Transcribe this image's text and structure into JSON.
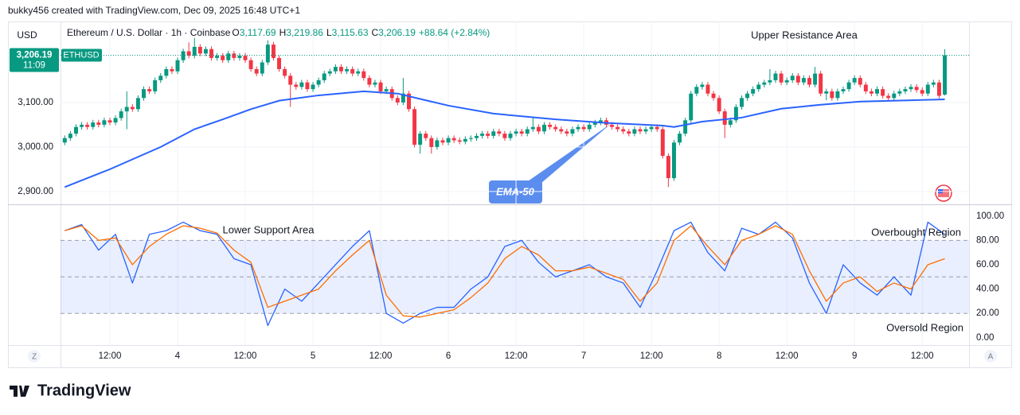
{
  "header": {
    "credit": "bukky456 created with TradingView.com, Dec 09, 2025 16:48 UTC+1"
  },
  "footer": {
    "brand": "TradingView"
  },
  "controls": [
    "Z",
    "A"
  ],
  "chart_data": [
    {
      "type": "candlestick",
      "title": "Ethereum / U.S. Dollar · 1h · Coinbase",
      "ohlc_legend": [
        [
          "O",
          "3,117.69"
        ],
        [
          "H",
          "3,219.86"
        ],
        [
          "L",
          "3,115.63"
        ],
        [
          "C",
          "3,206.19"
        ]
      ],
      "change": "+88.64 (+2.84%)",
      "unit": "USD",
      "price_tag": {
        "value": 3206.19,
        "label": "3,206.19",
        "countdown": "11:09",
        "symbol": "ETHUSD"
      },
      "annotations": [
        "Upper Resistance Area"
      ],
      "up_color": "#089981",
      "down_color": "#f23645",
      "xlim": [
        -20.75,
        140.3
      ],
      "ylim": [
        2873,
        3282
      ],
      "yticks": [
        {
          "value": 2900,
          "label": "2,900.00"
        },
        {
          "value": 3000,
          "label": "3,000.00"
        },
        {
          "value": 3100,
          "label": "3,100.00"
        }
      ],
      "grid": true,
      "x": [
        -20,
        -19,
        -18,
        -17,
        -16,
        -15,
        -14,
        -13,
        -12,
        -11,
        -10,
        -9,
        -8,
        -7,
        -6,
        -5,
        -4,
        -3,
        -2,
        -1,
        0,
        1,
        2,
        3,
        4,
        5,
        6,
        7,
        8,
        9,
        10,
        11,
        12,
        13,
        14,
        15,
        16,
        17,
        18,
        19,
        20,
        21,
        22,
        23,
        24,
        25,
        26,
        27,
        28,
        29,
        30,
        31,
        32,
        33,
        34,
        35,
        36,
        37,
        38,
        39,
        40,
        41,
        42,
        43,
        44,
        45,
        46,
        47,
        48,
        49,
        50,
        51,
        52,
        53,
        54,
        55,
        56,
        57,
        58,
        59,
        60,
        61,
        62,
        63,
        64,
        65,
        66,
        67,
        68,
        69,
        70,
        71,
        72,
        73,
        74,
        75,
        76,
        77,
        78,
        79,
        80,
        81,
        82,
        83,
        84,
        85,
        86,
        87,
        88,
        89,
        90,
        91,
        92,
        93,
        94,
        95,
        96,
        97,
        98,
        99,
        100,
        101,
        102,
        103,
        104,
        105,
        106,
        107,
        108,
        109,
        110,
        111,
        112,
        113,
        114,
        115,
        116,
        117,
        118,
        119,
        120,
        121,
        122,
        123,
        124,
        125,
        126,
        127,
        128,
        129,
        130,
        131,
        132,
        133,
        134,
        135,
        136
      ],
      "open": [
        3010,
        3020,
        3030,
        3045,
        3050,
        3045,
        3055,
        3050,
        3060,
        3055,
        3065,
        3080,
        3090,
        3085,
        3110,
        3130,
        3125,
        3150,
        3160,
        3175,
        3170,
        3195,
        3215,
        3205,
        3225,
        3210,
        3220,
        3200,
        3205,
        3195,
        3210,
        3200,
        3205,
        3195,
        3175,
        3165,
        3190,
        3230,
        3200,
        3175,
        3160,
        3140,
        3135,
        3145,
        3130,
        3140,
        3150,
        3165,
        3170,
        3180,
        3170,
        3175,
        3165,
        3170,
        3155,
        3140,
        3145,
        3125,
        3130,
        3110,
        3100,
        3120,
        3085,
        3005,
        3030,
        3020,
        3000,
        3015,
        3010,
        3020,
        3015,
        3012,
        3018,
        3020,
        3025,
        3030,
        3025,
        3035,
        3030,
        3020,
        3030,
        3035,
        3030,
        3040,
        3045,
        3035,
        3050,
        3045,
        3040,
        3035,
        3030,
        3040,
        3045,
        3040,
        3050,
        3055,
        3060,
        3050,
        3045,
        3040,
        3035,
        3030,
        3040,
        3035,
        3040,
        3045,
        3040,
        2980,
        2930,
        3010,
        3030,
        3060,
        3120,
        3135,
        3140,
        3120,
        3110,
        3080,
        3050,
        3060,
        3090,
        3110,
        3120,
        3130,
        3140,
        3145,
        3150,
        3165,
        3145,
        3150,
        3160,
        3145,
        3155,
        3140,
        3165,
        3120,
        3125,
        3110,
        3125,
        3130,
        3145,
        3155,
        3140,
        3125,
        3120,
        3130,
        3115,
        3110,
        3120,
        3125,
        3130,
        3135,
        3128,
        3120,
        3140,
        3145,
        3117.69
      ],
      "high": [
        3026,
        3036,
        3051,
        3056,
        3056,
        3061,
        3061,
        3066,
        3066,
        3071,
        3086,
        3125,
        3096,
        3116,
        3136,
        3136,
        3156,
        3166,
        3181,
        3181,
        3201,
        3221,
        3235,
        3245,
        3231,
        3226,
        3226,
        3211,
        3211,
        3216,
        3216,
        3211,
        3211,
        3201,
        3181,
        3196,
        3240,
        3236,
        3206,
        3181,
        3166,
        3146,
        3151,
        3151,
        3146,
        3156,
        3171,
        3176,
        3186,
        3186,
        3181,
        3181,
        3176,
        3176,
        3161,
        3151,
        3151,
        3136,
        3136,
        3116,
        3155,
        3126,
        3091,
        3036,
        3036,
        3026,
        3021,
        3021,
        3026,
        3026,
        3021,
        3024,
        3026,
        3031,
        3036,
        3036,
        3041,
        3041,
        3036,
        3036,
        3041,
        3041,
        3046,
        3066,
        3051,
        3056,
        3056,
        3051,
        3046,
        3041,
        3046,
        3051,
        3051,
        3056,
        3061,
        3066,
        3066,
        3056,
        3051,
        3046,
        3041,
        3046,
        3046,
        3046,
        3051,
        3051,
        3046,
        2986,
        3016,
        3036,
        3066,
        3126,
        3141,
        3146,
        3146,
        3126,
        3116,
        3086,
        3066,
        3096,
        3116,
        3126,
        3136,
        3146,
        3151,
        3175,
        3171,
        3171,
        3156,
        3166,
        3166,
        3161,
        3161,
        3180,
        3171,
        3131,
        3131,
        3131,
        3136,
        3151,
        3161,
        3161,
        3146,
        3131,
        3136,
        3136,
        3121,
        3126,
        3131,
        3136,
        3141,
        3141,
        3134,
        3146,
        3151,
        3151,
        3219.86
      ],
      "low": [
        3004,
        3014,
        3024,
        3039,
        3039,
        3039,
        3044,
        3044,
        3049,
        3049,
        3059,
        3040,
        3079,
        3079,
        3104,
        3119,
        3119,
        3144,
        3154,
        3164,
        3164,
        3189,
        3199,
        3199,
        3204,
        3204,
        3194,
        3194,
        3189,
        3189,
        3194,
        3194,
        3189,
        3169,
        3159,
        3159,
        3184,
        3194,
        3169,
        3154,
        3090,
        3129,
        3129,
        3124,
        3124,
        3134,
        3144,
        3159,
        3164,
        3164,
        3164,
        3159,
        3159,
        3149,
        3134,
        3134,
        3119,
        3119,
        3104,
        3094,
        3094,
        3079,
        2999,
        2985,
        3014,
        2985,
        2994,
        3004,
        3004,
        3009,
        3006,
        3006,
        3012,
        3014,
        3019,
        3019,
        3019,
        3024,
        3014,
        3014,
        3024,
        3024,
        3024,
        3034,
        3029,
        3029,
        3039,
        3034,
        3029,
        3024,
        3024,
        3034,
        3034,
        3034,
        3044,
        3049,
        3044,
        3039,
        3034,
        3029,
        3024,
        3024,
        3029,
        3029,
        3034,
        3034,
        2974,
        2910,
        2924,
        3004,
        3024,
        3054,
        3114,
        3129,
        3114,
        3104,
        3074,
        3020,
        3044,
        3054,
        3084,
        3104,
        3114,
        3124,
        3134,
        3139,
        3144,
        3139,
        3139,
        3144,
        3139,
        3139,
        3134,
        3134,
        3114,
        3105,
        3104,
        3104,
        3119,
        3124,
        3139,
        3134,
        3119,
        3114,
        3114,
        3109,
        3104,
        3104,
        3114,
        3119,
        3124,
        3122,
        3114,
        3114,
        3134,
        3109,
        3115.63
      ],
      "close": [
        3020,
        3030,
        3045,
        3050,
        3045,
        3055,
        3050,
        3060,
        3055,
        3065,
        3080,
        3090,
        3085,
        3110,
        3130,
        3125,
        3150,
        3160,
        3175,
        3170,
        3195,
        3215,
        3205,
        3225,
        3210,
        3220,
        3200,
        3205,
        3195,
        3210,
        3200,
        3205,
        3195,
        3175,
        3165,
        3190,
        3230,
        3200,
        3175,
        3160,
        3140,
        3135,
        3145,
        3130,
        3140,
        3150,
        3165,
        3170,
        3180,
        3170,
        3175,
        3165,
        3170,
        3155,
        3140,
        3145,
        3125,
        3130,
        3110,
        3100,
        3120,
        3085,
        3005,
        3030,
        3020,
        3000,
        3015,
        3010,
        3020,
        3015,
        3012,
        3018,
        3020,
        3025,
        3030,
        3025,
        3035,
        3030,
        3020,
        3030,
        3035,
        3030,
        3040,
        3045,
        3035,
        3050,
        3045,
        3040,
        3035,
        3030,
        3040,
        3045,
        3040,
        3050,
        3055,
        3060,
        3050,
        3045,
        3040,
        3035,
        3030,
        3040,
        3035,
        3040,
        3045,
        3040,
        2980,
        2930,
        3010,
        3030,
        3060,
        3120,
        3135,
        3140,
        3120,
        3110,
        3080,
        3050,
        3060,
        3090,
        3110,
        3120,
        3130,
        3140,
        3145,
        3150,
        3165,
        3145,
        3150,
        3160,
        3145,
        3155,
        3140,
        3165,
        3120,
        3125,
        3110,
        3125,
        3130,
        3145,
        3155,
        3140,
        3125,
        3120,
        3130,
        3115,
        3110,
        3120,
        3125,
        3130,
        3135,
        3128,
        3120,
        3140,
        3145,
        3115,
        3206.19
      ],
      "series": [
        {
          "name": "EMA-50",
          "color": "#2962ff",
          "x": [
            -20,
            -12,
            -3,
            3,
            8,
            13,
            18,
            25,
            33,
            39,
            44,
            48,
            56,
            67,
            76,
            86,
            88,
            93,
            100,
            107,
            114,
            121,
            136
          ],
          "values": [
            2910,
            2950,
            3000,
            3040,
            3062,
            3085,
            3104,
            3116,
            3125,
            3120,
            3105,
            3093,
            3075,
            3062,
            3054,
            3048,
            3045,
            3057,
            3066,
            3086,
            3095,
            3102,
            3107
          ]
        }
      ]
    },
    {
      "type": "line",
      "annotations": [
        "Lower Support Area",
        "Overbought Region",
        "Oversold Region"
      ],
      "levels": [
        80,
        50,
        20
      ],
      "band_color": "#2962ff",
      "xlim": [
        -20.75,
        140.3
      ],
      "xticks": [
        {
          "value": -12,
          "label": "12:00"
        },
        {
          "value": 0,
          "label": "4"
        },
        {
          "value": 12,
          "label": "12:00"
        },
        {
          "value": 24,
          "label": "5"
        },
        {
          "value": 36,
          "label": "12:00"
        },
        {
          "value": 48,
          "label": "6"
        },
        {
          "value": 60,
          "label": "12:00"
        },
        {
          "value": 72,
          "label": "7"
        },
        {
          "value": 84,
          "label": "12:00"
        },
        {
          "value": 96,
          "label": "8"
        },
        {
          "value": 108,
          "label": "12:00"
        },
        {
          "value": 120,
          "label": "9"
        },
        {
          "value": 132,
          "label": "12:00"
        }
      ],
      "ylim": [
        -6,
        109
      ],
      "yticks": [
        {
          "value": 0,
          "label": "0.00"
        },
        {
          "value": 20,
          "label": "20.00"
        },
        {
          "value": 40,
          "label": "40.00"
        },
        {
          "value": 60,
          "label": "60.00"
        },
        {
          "value": 80,
          "label": "80.00"
        },
        {
          "value": 100,
          "label": "100.00"
        }
      ],
      "x": [
        -20,
        -17,
        -14,
        -11,
        -8,
        -5,
        -2,
        1,
        4,
        7,
        10,
        13,
        16,
        19,
        22,
        25,
        28,
        31,
        34,
        37,
        40,
        43,
        46,
        49,
        52,
        55,
        58,
        61,
        64,
        67,
        70,
        73,
        76,
        79,
        82,
        85,
        88,
        91,
        94,
        97,
        100,
        103,
        106,
        109,
        112,
        115,
        118,
        121,
        124,
        127,
        130,
        133,
        136
      ],
      "series": [
        {
          "color": "#2962ff",
          "values": [
            88,
            93,
            72,
            85,
            45,
            85,
            88,
            95,
            88,
            85,
            65,
            60,
            10,
            40,
            30,
            45,
            60,
            75,
            88,
            20,
            12,
            20,
            25,
            25,
            40,
            50,
            75,
            80,
            62,
            50,
            55,
            60,
            50,
            45,
            25,
            55,
            88,
            95,
            70,
            55,
            90,
            85,
            95,
            82,
            45,
            20,
            60,
            45,
            35,
            50,
            35,
            95,
            85
          ]
        },
        {
          "color": "#ff6d00",
          "values": [
            88,
            92,
            80,
            82,
            60,
            75,
            85,
            92,
            90,
            86,
            72,
            62,
            25,
            30,
            35,
            40,
            55,
            68,
            80,
            35,
            18,
            17,
            20,
            23,
            33,
            45,
            65,
            75,
            68,
            55,
            55,
            58,
            53,
            48,
            30,
            45,
            80,
            92,
            75,
            60,
            80,
            85,
            92,
            85,
            55,
            30,
            45,
            50,
            38,
            45,
            40,
            60,
            65
          ]
        }
      ]
    }
  ]
}
